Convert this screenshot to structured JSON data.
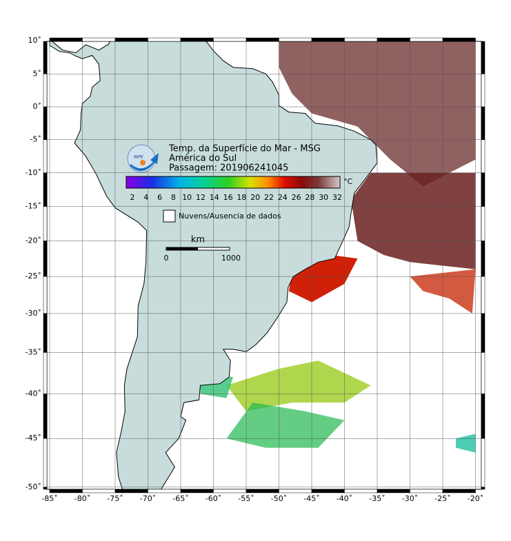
{
  "title": {
    "line1": "Temp. da Superfície do Mar - MSG",
    "line2": "América do Sul",
    "line3": "Passagem: 201906241045",
    "logo": "INPE"
  },
  "colorbar": {
    "unit": "°C",
    "ticks": [
      "2",
      "4",
      "6",
      "8",
      "10",
      "12",
      "14",
      "16",
      "18",
      "20",
      "22",
      "24",
      "26",
      "28",
      "30",
      "32"
    ]
  },
  "legend": {
    "clouds": "Nuvens/Ausencia de dados"
  },
  "scale": {
    "unit": "km",
    "start": "0",
    "end": "1000"
  },
  "lon_labels": [
    "-85˚",
    "-80˚",
    "-75˚",
    "-70˚",
    "-65˚",
    "-60˚",
    "-55˚",
    "-50˚",
    "-45˚",
    "-40˚",
    "-35˚",
    "-30˚",
    "-25˚",
    "-20˚"
  ],
  "lat_labels": [
    "10˚",
    "5˚",
    "0˚",
    "-5˚",
    "-10˚",
    "-15˚",
    "-20˚",
    "-25˚",
    "-30˚",
    "-35˚",
    "-40˚",
    "-45˚",
    "-50˚"
  ]
}
